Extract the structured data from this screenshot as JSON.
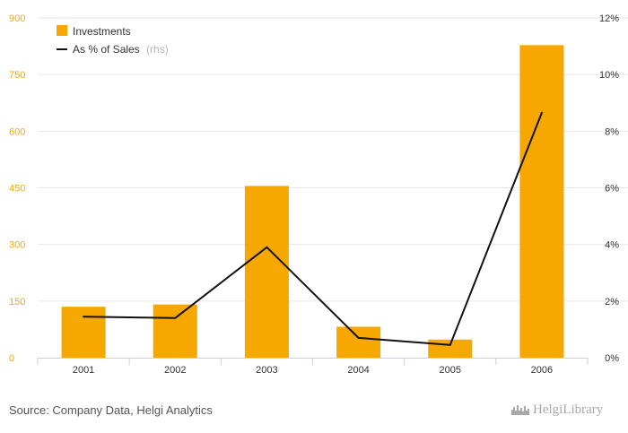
{
  "chart_data": {
    "type": "bar",
    "categories": [
      "2001",
      "2002",
      "2003",
      "2004",
      "2005",
      "2006"
    ],
    "series": [
      {
        "name": "Investments",
        "type": "bar",
        "axis": "left",
        "values": [
          135,
          141,
          455,
          82,
          48,
          828
        ]
      },
      {
        "name": "As % of Sales",
        "type": "line",
        "axis": "right",
        "values": [
          1.45,
          1.4,
          3.9,
          0.7,
          0.45,
          8.65
        ]
      }
    ],
    "y_left": {
      "min": 0,
      "max": 900,
      "ticks": [
        "0",
        "150",
        "300",
        "450",
        "600",
        "750",
        "900"
      ]
    },
    "y_right": {
      "min": 0,
      "max": 12,
      "ticks": [
        "0%",
        "2%",
        "4%",
        "6%",
        "8%",
        "10%",
        "12%"
      ]
    },
    "legend": {
      "position": "top-left",
      "items": [
        {
          "label": "Investments",
          "suffix": ""
        },
        {
          "label": "As % of Sales",
          "suffix": "(rhs)"
        }
      ]
    },
    "grid": true
  },
  "colors": {
    "bar": "#f7a800",
    "line": "#111111",
    "grid": "#e6e6e6",
    "left_tick": "#f2a900"
  },
  "footer": {
    "source": "Source: Company Data, Helgi Analytics",
    "brand": "HelgiLibrary",
    "brand_icon": "skyline-icon"
  }
}
